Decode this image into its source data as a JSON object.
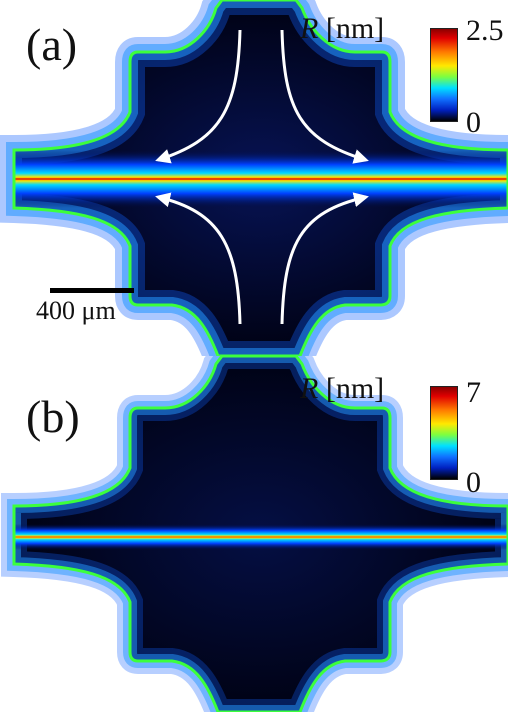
{
  "panels": [
    {
      "label": "(a)",
      "colorbar": {
        "title_symbol": "R",
        "title_unit": "[nm]",
        "max": "2.5",
        "min": "0"
      },
      "scalebar_label": "400 μm"
    },
    {
      "label": "(b)",
      "colorbar": {
        "title_symbol": "R",
        "title_unit": "[nm]",
        "max": "7",
        "min": "0"
      }
    }
  ]
}
